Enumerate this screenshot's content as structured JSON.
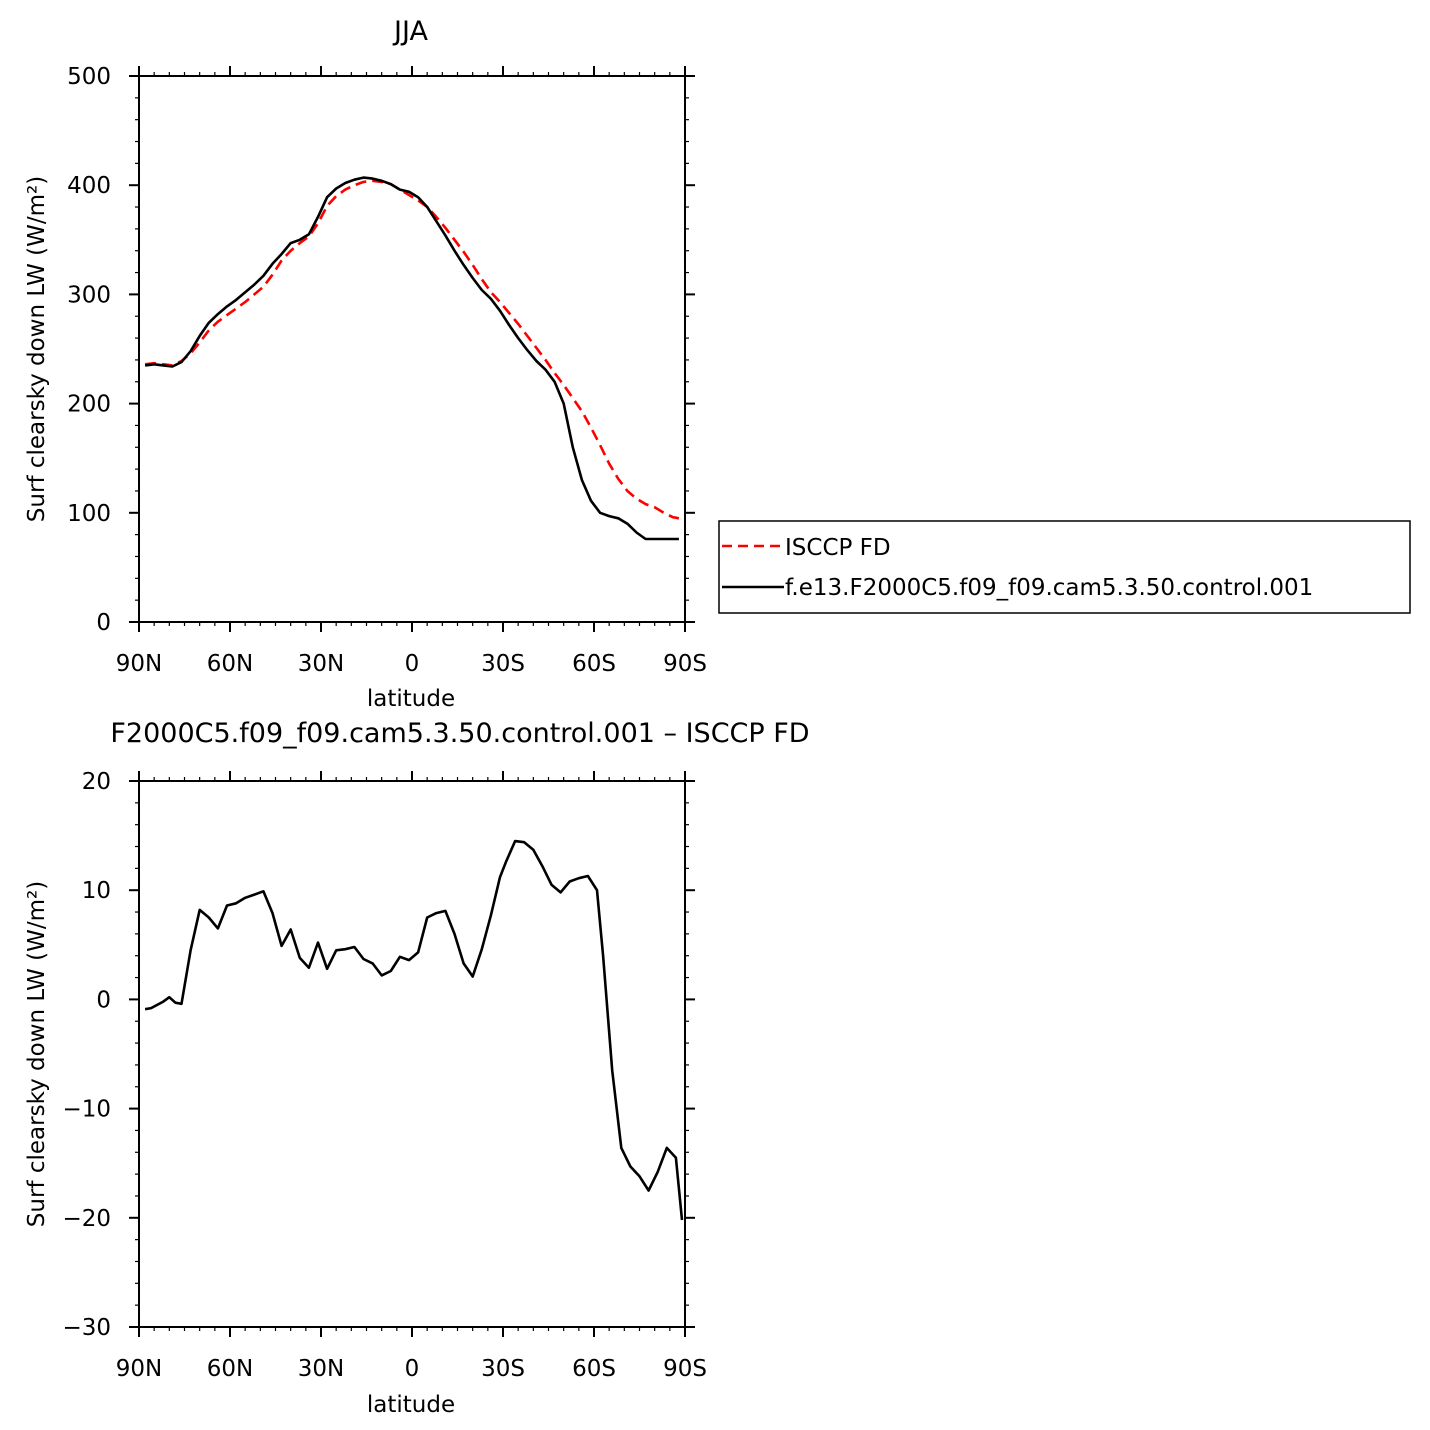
{
  "chart_data": [
    {
      "type": "line",
      "title": "JJA",
      "xlabel": "latitude",
      "ylabel": "Surf clearsky down LW (W/m²)",
      "xlim": [
        90,
        -90
      ],
      "ylim": [
        0,
        500
      ],
      "x_ticks": [
        {
          "value": 90,
          "label": "90N"
        },
        {
          "value": 60,
          "label": "60N"
        },
        {
          "value": 30,
          "label": "30N"
        },
        {
          "value": 0,
          "label": "0"
        },
        {
          "value": -30,
          "label": "30S"
        },
        {
          "value": -60,
          "label": "60S"
        },
        {
          "value": -90,
          "label": "90S"
        }
      ],
      "y_ticks": [
        0,
        100,
        200,
        300,
        400,
        500
      ],
      "y_minor_step": 20,
      "x_minor_step": 5,
      "legend": {
        "placement": "right",
        "entries": [
          {
            "label": "ISCCP FD",
            "color": "#ff0000",
            "dashed": true
          },
          {
            "label": "f.e13.F2000C5.f09_f09.cam5.3.50.control.001",
            "color": "#000000",
            "dashed": false
          }
        ]
      },
      "series": [
        {
          "name": "ISCCP FD",
          "color": "#ff0000",
          "dashed": true,
          "x": [
            88,
            85,
            82,
            79,
            76,
            73,
            70,
            67,
            64,
            61,
            58,
            55,
            52,
            49,
            46,
            43,
            40,
            37,
            34,
            31,
            28,
            25,
            22,
            19,
            16,
            13,
            10,
            7,
            4,
            1,
            -2,
            -5,
            -8,
            -11,
            -14,
            -17,
            -20,
            -23,
            -26,
            -29,
            -32,
            -35,
            -38,
            -41,
            -44,
            -47,
            -50,
            -53,
            -56,
            -59,
            -62,
            -65,
            -68,
            -71,
            -74,
            -77,
            -80,
            -83,
            -86,
            -88
          ],
          "y": [
            236,
            237,
            236,
            235,
            239,
            246,
            256,
            267,
            275,
            281,
            287,
            293,
            300,
            307,
            318,
            331,
            340,
            347,
            353,
            365,
            381,
            390,
            396,
            400,
            403,
            404,
            403,
            401,
            396,
            391,
            386,
            380,
            371,
            361,
            350,
            339,
            327,
            314,
            302,
            293,
            283,
            273,
            262,
            251,
            240,
            228,
            217,
            205,
            193,
            178,
            162,
            145,
            131,
            120,
            113,
            108,
            105,
            100,
            96,
            95
          ]
        },
        {
          "name": "f.e13.F2000C5.f09_f09.cam5.3.50.control.001",
          "color": "#000000",
          "dashed": false,
          "x": [
            88,
            85,
            82,
            79,
            76,
            73,
            70,
            67,
            64,
            61,
            58,
            55,
            52,
            49,
            46,
            43,
            40,
            37,
            34,
            31,
            28,
            25,
            22,
            19,
            16,
            13,
            10,
            7,
            4,
            1,
            -2,
            -5,
            -8,
            -11,
            -14,
            -17,
            -20,
            -23,
            -26,
            -29,
            -32,
            -35,
            -38,
            -41,
            -44,
            -47,
            -50,
            -53,
            -56,
            -59,
            -62,
            -65,
            -68,
            -71,
            -74,
            -77,
            -80,
            -83,
            -86,
            -88
          ],
          "y": [
            235,
            236,
            235,
            234,
            238,
            248,
            262,
            274,
            282,
            289,
            295,
            302,
            309,
            317,
            328,
            337,
            347,
            350,
            355,
            371,
            389,
            397,
            402,
            405,
            407,
            406,
            404,
            401,
            396,
            394,
            389,
            380,
            367,
            354,
            340,
            327,
            315,
            304,
            296,
            285,
            272,
            260,
            249,
            239,
            231,
            220,
            200,
            160,
            130,
            111,
            100,
            97,
            95,
            90,
            82,
            76,
            76,
            76,
            76,
            76
          ]
        }
      ]
    },
    {
      "type": "line",
      "title": "F2000C5.f09_f09.cam5.3.50.control.001 – ISCCP FD",
      "xlabel": "latitude",
      "ylabel": "Surf clearsky down LW (W/m²)",
      "xlim": [
        90,
        -90
      ],
      "ylim": [
        -30,
        20
      ],
      "x_ticks": [
        {
          "value": 90,
          "label": "90N"
        },
        {
          "value": 60,
          "label": "60N"
        },
        {
          "value": 30,
          "label": "30N"
        },
        {
          "value": 0,
          "label": "0"
        },
        {
          "value": -30,
          "label": "30S"
        },
        {
          "value": -60,
          "label": "60S"
        },
        {
          "value": -90,
          "label": "90S"
        }
      ],
      "y_ticks": [
        -30,
        -20,
        -10,
        0,
        10,
        20
      ],
      "y_tick_labels": [
        "−30",
        "−20",
        "−10",
        "0",
        "10",
        "20"
      ],
      "y_minor_step": 2,
      "x_minor_step": 5,
      "series": [
        {
          "color": "#000000",
          "dashed": false,
          "x": [
            88,
            86,
            84,
            82,
            80,
            78,
            76,
            73,
            70,
            67,
            64,
            61,
            58,
            55,
            52,
            49,
            46,
            43,
            40,
            37,
            34,
            31,
            28,
            25,
            22,
            19,
            16,
            13,
            10,
            7,
            4,
            1,
            -2,
            -5,
            -8,
            -11,
            -14,
            -17,
            -20,
            -23,
            -26,
            -29,
            -31,
            -34,
            -37,
            -40,
            -43,
            -46,
            -49,
            -52,
            -55,
            -58,
            -61,
            -63,
            -66,
            -69,
            -72,
            -75,
            -78,
            -81,
            -84,
            -87,
            -89
          ],
          "y": [
            -0.9,
            -0.8,
            -0.5,
            -0.2,
            0.2,
            -0.3,
            -0.4,
            4.5,
            8.2,
            7.5,
            6.5,
            8.6,
            8.8,
            9.3,
            9.6,
            9.9,
            7.9,
            4.9,
            6.4,
            3.8,
            2.9,
            5.2,
            2.8,
            4.5,
            4.6,
            4.8,
            3.7,
            3.3,
            2.2,
            2.6,
            3.9,
            3.6,
            4.3,
            7.5,
            7.9,
            8.1,
            6.0,
            3.3,
            2.1,
            4.6,
            7.7,
            11.2,
            12.6,
            14.5,
            14.4,
            13.7,
            12.2,
            10.5,
            9.8,
            10.8,
            11.1,
            11.3,
            10.0,
            4.0,
            -6.5,
            -13.6,
            -15.3,
            -16.2,
            -17.5,
            -15.8,
            -13.6,
            -14.5,
            -20.2
          ]
        }
      ]
    }
  ]
}
